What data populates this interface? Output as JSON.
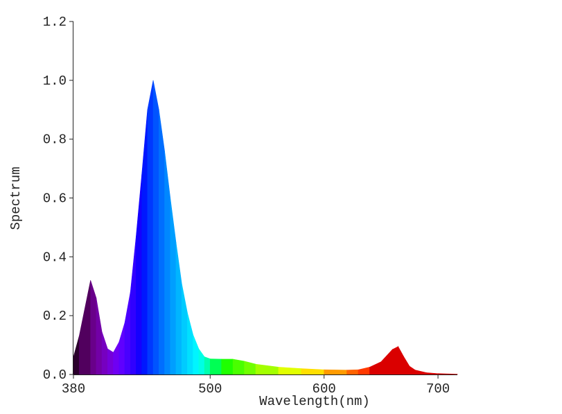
{
  "chart_data": {
    "type": "area",
    "x_label": "Wavelength(nm)",
    "y_label": "Spectrum",
    "x": [
      380,
      385,
      395,
      400,
      405,
      410,
      415,
      420,
      425,
      430,
      435,
      440,
      445,
      450,
      455,
      460,
      465,
      470,
      475,
      480,
      485,
      490,
      495,
      500,
      510,
      520,
      530,
      540,
      560,
      580,
      600,
      620,
      630,
      640,
      650,
      660,
      665,
      670,
      675,
      680,
      690,
      700,
      717
    ],
    "values": [
      0.06,
      0.13,
      0.32,
      0.26,
      0.145,
      0.087,
      0.075,
      0.11,
      0.175,
      0.28,
      0.47,
      0.68,
      0.9,
      1.0,
      0.9,
      0.76,
      0.6,
      0.45,
      0.31,
      0.21,
      0.135,
      0.087,
      0.06,
      0.053,
      0.052,
      0.052,
      0.045,
      0.035,
      0.025,
      0.02,
      0.016,
      0.015,
      0.016,
      0.025,
      0.043,
      0.085,
      0.095,
      0.06,
      0.028,
      0.015,
      0.006,
      0.003,
      0.001
    ],
    "color_by_wavelength": true,
    "xlim": [
      380,
      717
    ],
    "ylim": [
      0,
      1.2
    ],
    "xticks": [
      380,
      500,
      600,
      700
    ],
    "yticks": [
      {
        "value": 0,
        "label": "0.0"
      },
      {
        "value": 0.2,
        "label": "0.2"
      },
      {
        "value": 0.4,
        "label": "0.4"
      },
      {
        "value": 0.6,
        "label": "0.6"
      },
      {
        "value": 0.8,
        "label": "0.8"
      },
      {
        "value": 1.0,
        "label": "1.0"
      },
      {
        "value": 1.2,
        "label": "1.2"
      }
    ]
  }
}
